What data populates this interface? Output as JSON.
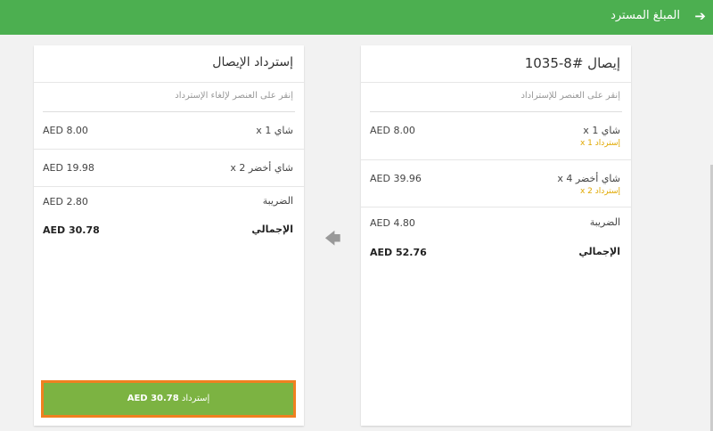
{
  "header": {
    "title": "المبلغ المسترد",
    "back_icon": "arrow-right-icon",
    "color": "#4caf50"
  },
  "receipt": {
    "title": "إيصال #8-1035",
    "hint": "إنقر على العنصر للإستراداد",
    "items": [
      {
        "name": "شاي 1 x",
        "refund": "إسترداد 1 x",
        "price": "AED 8.00"
      },
      {
        "name": "شاي أخضر 4 x",
        "refund": "إسترداد 2 x",
        "price": "AED 39.96"
      }
    ],
    "tax_label": "الضريبة",
    "tax": "AED 4.80",
    "total_label": "الإجمالي",
    "total": "AED 52.76"
  },
  "refund": {
    "title": "إسترداد الإيصال",
    "hint": "إنقر على العنصر لإلغاء الإسترداد",
    "items": [
      {
        "name": "شاي 1 x",
        "price": "AED 8.00"
      },
      {
        "name": "شاي أخضر 2 x",
        "price": "AED 19.98"
      }
    ],
    "tax_label": "الضريبة",
    "tax": "AED 2.80",
    "total_label": "الإجمالي",
    "total": "AED 30.78",
    "button_label": "إسترداد",
    "button_amount": "AED 30.78"
  }
}
